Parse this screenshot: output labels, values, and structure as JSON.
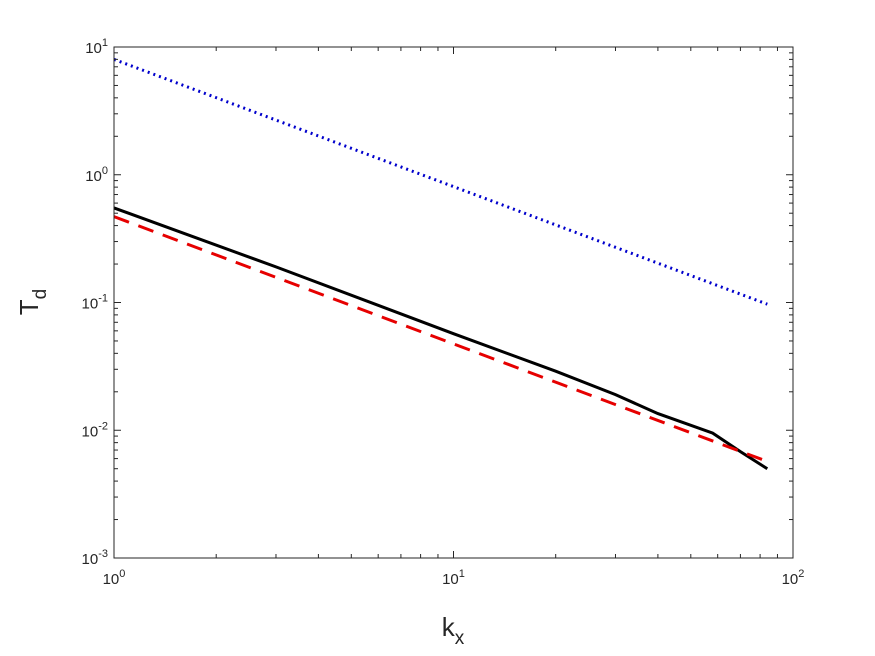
{
  "chart_data": {
    "type": "line",
    "xscale": "log",
    "yscale": "log",
    "xlim": [
      1,
      100
    ],
    "ylim": [
      0.001,
      10
    ],
    "grid": false,
    "xlabel": {
      "base": "k",
      "sub": "x"
    },
    "ylabel": {
      "base": "T",
      "sub": "d"
    },
    "x_ticks": [
      {
        "value": 1,
        "base": "10",
        "exp": "0"
      },
      {
        "value": 10,
        "base": "10",
        "exp": "1"
      },
      {
        "value": 100,
        "base": "10",
        "exp": "2"
      }
    ],
    "y_ticks": [
      {
        "value": 0.001,
        "base": "10",
        "exp": "-3"
      },
      {
        "value": 0.01,
        "base": "10",
        "exp": "-2"
      },
      {
        "value": 0.1,
        "base": "10",
        "exp": "-1"
      },
      {
        "value": 1,
        "base": "10",
        "exp": "0"
      },
      {
        "value": 10,
        "base": "10",
        "exp": "1"
      }
    ],
    "series": [
      {
        "style": "dotted",
        "color": "#0000cc",
        "points": [
          [
            1,
            8.0
          ],
          [
            84,
            0.097
          ]
        ]
      },
      {
        "style": "solid",
        "color": "#000000",
        "points": [
          [
            1,
            0.55
          ],
          [
            3,
            0.19
          ],
          [
            10,
            0.057
          ],
          [
            20,
            0.029
          ],
          [
            30,
            0.019
          ],
          [
            40,
            0.0135
          ],
          [
            58,
            0.0095
          ],
          [
            70,
            0.0068
          ],
          [
            84,
            0.005
          ]
        ]
      },
      {
        "style": "dashed",
        "color": "#e60000",
        "points": [
          [
            1,
            0.47
          ],
          [
            84,
            0.0057
          ]
        ]
      }
    ]
  }
}
